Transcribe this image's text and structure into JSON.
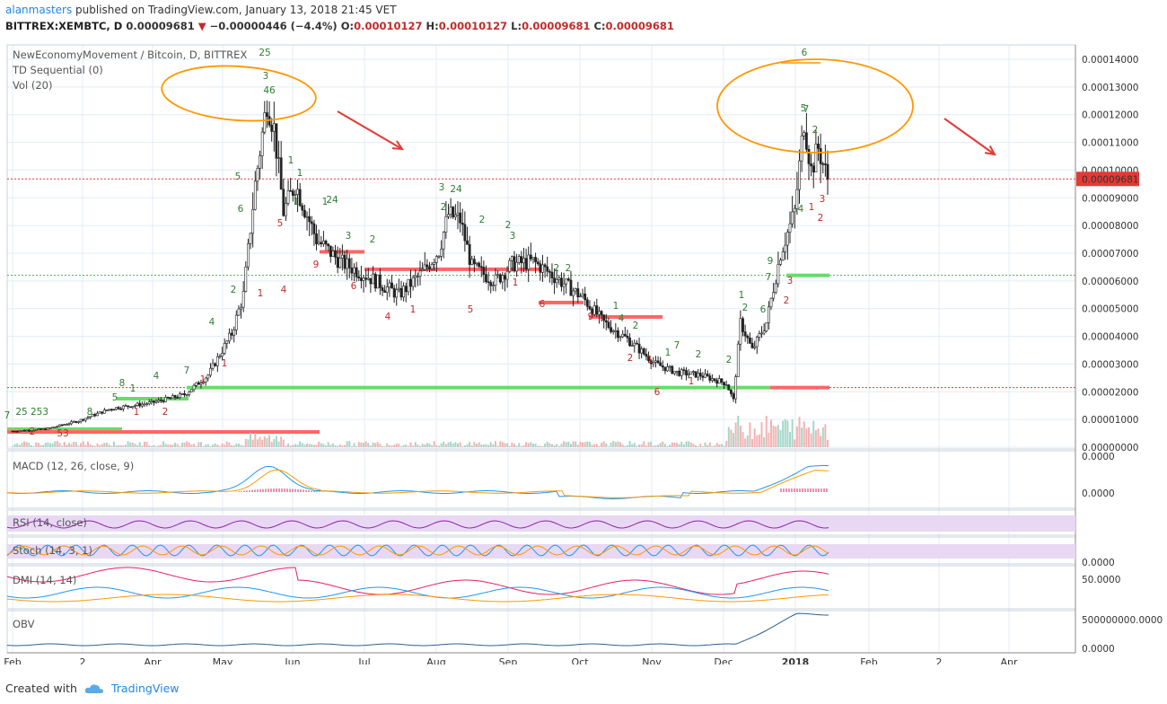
{
  "header": {
    "user": "alanmasters",
    "published": "published on TradingView.com, January 13, 2018 21:45 VET",
    "symbol": "BITTREX:XEMBTC, D",
    "last": "0.00009681",
    "change": "−0.00000446 (−4.4%)",
    "ohlc": {
      "o": "0.00010127",
      "h": "0.00010127",
      "l": "0.00009681",
      "c": "0.00009681"
    }
  },
  "footer": {
    "created_with": "Created with",
    "brand": "TradingView"
  },
  "colors": {
    "up": "#26a69a",
    "down": "#ef5350",
    "candle": "#222222",
    "accent": "#1e88e5",
    "orange": "#ff9800",
    "price_line": "#e53935",
    "support": "#4caf50",
    "resistance": "#f44336",
    "purple": "#8e24aa"
  },
  "chart_data": [
    {
      "type": "candlestick",
      "title": "NewEconomyMovement / Bitcoin, D, BITTREX",
      "indicators": [
        "TD Sequential (0)",
        "Vol (20)"
      ],
      "y_ticks": [
        "0.00014000",
        "0.00013000",
        "0.00012000",
        "0.00011000",
        "0.00010000",
        "0.00009000",
        "0.00008000",
        "0.00007000",
        "0.00006000",
        "0.00005000",
        "0.00004000",
        "0.00003000",
        "0.00002000",
        "0.00001000",
        "0.00000000"
      ],
      "ylim": [
        0,
        0.00014
      ],
      "last_price_label": "0.00009681",
      "x_ticks": [
        "Feb",
        "2",
        "Apr",
        "May",
        "Jun",
        "Jul",
        "Aug",
        "Sep",
        "Oct",
        "Nov",
        "Dec",
        "2018",
        "Feb",
        "2",
        "Apr"
      ],
      "series": [
        {
          "values": [
            {
              "x": "2017-02-01",
              "y": 5.8e-06
            },
            {
              "x": "2017-02-15",
              "y": 6.5e-06
            },
            {
              "x": "2017-03-01",
              "y": 9.5e-06
            },
            {
              "x": "2017-03-15",
              "y": 1.4e-05
            },
            {
              "x": "2017-04-01",
              "y": 1.6e-05
            },
            {
              "x": "2017-04-15",
              "y": 1.9e-05
            },
            {
              "x": "2017-04-25",
              "y": 2.6e-05
            },
            {
              "x": "2017-05-05",
              "y": 4.1e-05
            },
            {
              "x": "2017-05-10",
              "y": 5.5e-05
            },
            {
              "x": "2017-05-15",
              "y": 9.5e-05
            },
            {
              "x": "2017-05-20",
              "y": 0.000125
            },
            {
              "x": "2017-05-23",
              "y": 0.000115
            },
            {
              "x": "2017-05-27",
              "y": 8.5e-05
            },
            {
              "x": "2017-06-01",
              "y": 9.5e-05
            },
            {
              "x": "2017-06-10",
              "y": 7.5e-05
            },
            {
              "x": "2017-06-20",
              "y": 6.7e-05
            },
            {
              "x": "2017-07-01",
              "y": 6.2e-05
            },
            {
              "x": "2017-07-15",
              "y": 5.5e-05
            },
            {
              "x": "2017-07-25",
              "y": 6.3e-05
            },
            {
              "x": "2017-08-01",
              "y": 7.1e-05
            },
            {
              "x": "2017-08-05",
              "y": 8.4e-05
            },
            {
              "x": "2017-08-10",
              "y": 8.2e-05
            },
            {
              "x": "2017-08-15",
              "y": 6.5e-05
            },
            {
              "x": "2017-08-25",
              "y": 6e-05
            },
            {
              "x": "2017-09-01",
              "y": 6.6e-05
            },
            {
              "x": "2017-09-10",
              "y": 6.7e-05
            },
            {
              "x": "2017-09-20",
              "y": 6.1e-05
            },
            {
              "x": "2017-10-01",
              "y": 5.4e-05
            },
            {
              "x": "2017-10-10",
              "y": 4.5e-05
            },
            {
              "x": "2017-10-20",
              "y": 3.9e-05
            },
            {
              "x": "2017-11-01",
              "y": 3e-05
            },
            {
              "x": "2017-11-10",
              "y": 2.7e-05
            },
            {
              "x": "2017-11-20",
              "y": 2.6e-05
            },
            {
              "x": "2017-12-01",
              "y": 2.3e-05
            },
            {
              "x": "2017-12-04",
              "y": 1.7e-05
            },
            {
              "x": "2017-12-07",
              "y": 4.5e-05
            },
            {
              "x": "2017-12-12",
              "y": 3.5e-05
            },
            {
              "x": "2017-12-18",
              "y": 4.5e-05
            },
            {
              "x": "2017-12-24",
              "y": 7e-05
            },
            {
              "x": "2017-12-30",
              "y": 8.5e-05
            },
            {
              "x": "2018-01-03",
              "y": 0.000118
            },
            {
              "x": "2018-01-06",
              "y": 0.0001
            },
            {
              "x": "2018-01-09",
              "y": 0.000108
            },
            {
              "x": "2018-01-13",
              "y": 9.681e-05
            }
          ]
        }
      ],
      "annotations": {
        "levels": [
          9.681e-05,
          6.2e-05,
          2.15e-05,
          5e-06
        ],
        "ellipses": [
          "May peak",
          "January peak"
        ],
        "arrows": [
          "down",
          "down"
        ]
      }
    },
    {
      "type": "line",
      "title": "MACD (12, 26, close, 9)",
      "y_ticks": [
        "0.0000",
        "0.0000"
      ]
    },
    {
      "type": "line",
      "title": "RSI (14, close)"
    },
    {
      "type": "line",
      "title": "Stoch (14, 3, 1)",
      "y_ticks": [
        "0.0000"
      ]
    },
    {
      "type": "line",
      "title": "DMI (14, 14)",
      "y_ticks": [
        "50.0000"
      ]
    },
    {
      "type": "area",
      "title": "OBV",
      "y_ticks": [
        "500000000.0000",
        "0.0000"
      ]
    }
  ]
}
